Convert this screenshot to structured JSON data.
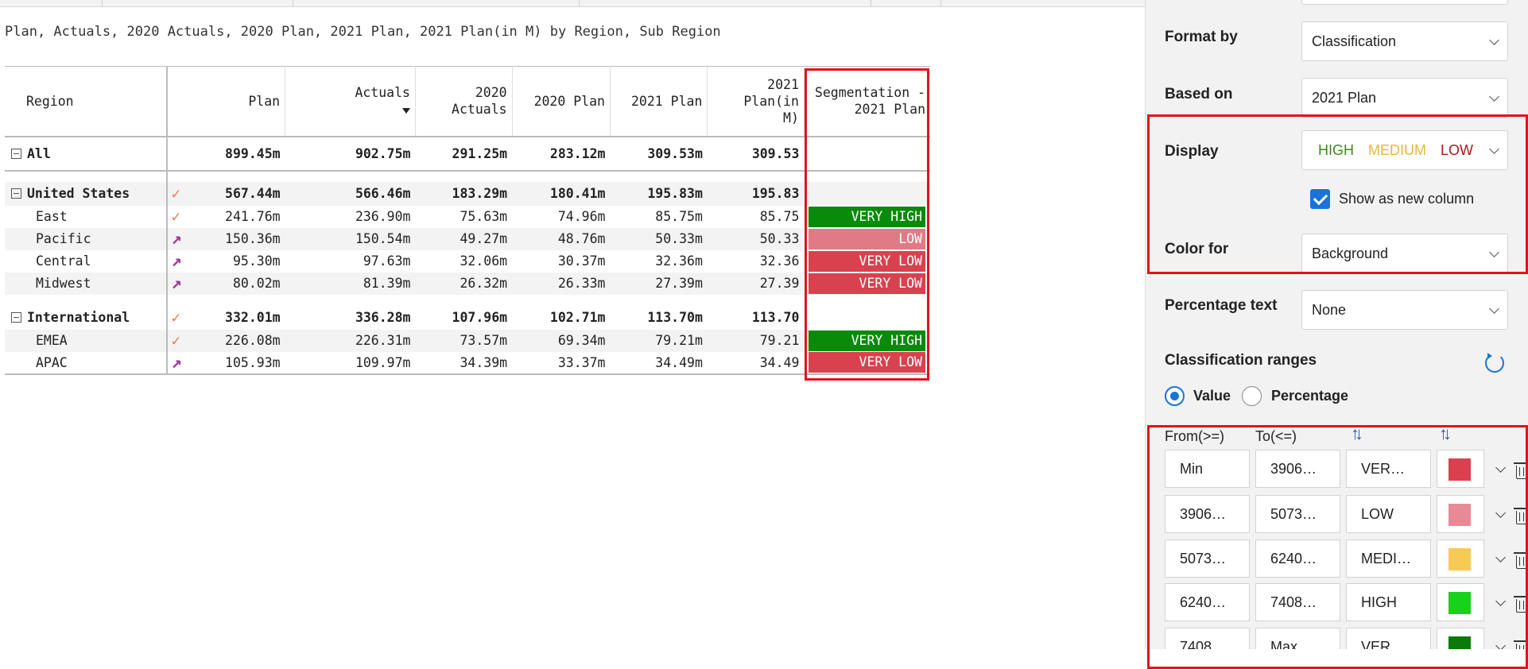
{
  "report": {
    "caption": "Plan, Actuals, 2020 Actuals, 2020 Plan, 2021 Plan, 2021 Plan(in M) by Region, Sub Region",
    "columns": {
      "region": "Region",
      "plan": "Plan",
      "actuals": "Actuals",
      "actuals_2020": "2020 Actuals",
      "plan_2020": "2020 Plan",
      "plan_2021": "2021 Plan",
      "plan_2021_m": "2021 Plan(in M)",
      "segmentation": "Segmentation - 2021 Plan"
    },
    "rows": [
      {
        "name": "All",
        "plan": "899.45m",
        "actuals": "902.75m",
        "a2020": "291.25m",
        "p2020": "283.12m",
        "p2021": "309.53m",
        "p2021m": "309.53",
        "seg": ""
      },
      {
        "name": "United States",
        "plan": "567.44m",
        "actuals": "566.46m",
        "a2020": "183.29m",
        "p2020": "180.41m",
        "p2021": "195.83m",
        "p2021m": "195.83",
        "seg": ""
      },
      {
        "name": "East",
        "plan": "241.76m",
        "actuals": "236.90m",
        "a2020": "75.63m",
        "p2020": "74.96m",
        "p2021": "85.75m",
        "p2021m": "85.75",
        "seg": "VERY HIGH"
      },
      {
        "name": "Pacific",
        "plan": "150.36m",
        "actuals": "150.54m",
        "a2020": "49.27m",
        "p2020": "48.76m",
        "p2021": "50.33m",
        "p2021m": "50.33",
        "seg": "LOW"
      },
      {
        "name": "Central",
        "plan": "95.30m",
        "actuals": "97.63m",
        "a2020": "32.06m",
        "p2020": "30.37m",
        "p2021": "32.36m",
        "p2021m": "32.36",
        "seg": "VERY LOW"
      },
      {
        "name": "Midwest",
        "plan": "80.02m",
        "actuals": "81.39m",
        "a2020": "26.32m",
        "p2020": "26.33m",
        "p2021": "27.39m",
        "p2021m": "27.39",
        "seg": "VERY LOW"
      },
      {
        "name": "International",
        "plan": "332.01m",
        "actuals": "336.28m",
        "a2020": "107.96m",
        "p2020": "102.71m",
        "p2021": "113.70m",
        "p2021m": "113.70",
        "seg": ""
      },
      {
        "name": "EMEA",
        "plan": "226.08m",
        "actuals": "226.31m",
        "a2020": "73.57m",
        "p2020": "69.34m",
        "p2021": "79.21m",
        "p2021m": "79.21",
        "seg": "VERY HIGH"
      },
      {
        "name": "APAC",
        "plan": "105.93m",
        "actuals": "109.97m",
        "a2020": "34.39m",
        "p2020": "33.37m",
        "p2021": "34.49m",
        "p2021m": "34.49",
        "seg": "VERY LOW"
      }
    ],
    "icons": {
      "up_check": "check-icon",
      "up_arrow": "arrow-up-right-icon"
    },
    "segment_colors": {
      "VERY HIGH": "#0a8a0a",
      "LOW": "#e07b86",
      "VERY LOW": "#d9414e"
    }
  },
  "panel": {
    "format_by": {
      "label": "Format by",
      "value": "Classification"
    },
    "based_on": {
      "label": "Based on",
      "value": "2021 Plan"
    },
    "display": {
      "label": "Display",
      "values": [
        {
          "text": "HIGH",
          "color": "#3a8a1a"
        },
        {
          "text": "MEDIUM",
          "color": "#e8b53a"
        },
        {
          "text": "LOW",
          "color": "#b0141c"
        }
      ],
      "show_as_new_column": "Show as new column"
    },
    "color_for": {
      "label": "Color for",
      "value": "Background"
    },
    "percentage_text": {
      "label": "Percentage text",
      "value": "None"
    },
    "classification_ranges": {
      "label": "Classification ranges",
      "mode_value": "Value",
      "mode_percentage": "Percentage",
      "headers": {
        "from": "From(>=)",
        "to": "To(<=)"
      },
      "ranges": [
        {
          "from": "Min",
          "to": "3906…",
          "name": "VER…",
          "color": "#d9414e"
        },
        {
          "from": "3906…",
          "to": "5073…",
          "name": "LOW",
          "color": "#e88a95"
        },
        {
          "from": "5073…",
          "to": "6240…",
          "name": "MEDI…",
          "color": "#f7c955"
        },
        {
          "from": "6240…",
          "to": "7408…",
          "name": "HIGH",
          "color": "#17d11a"
        },
        {
          "from": "7408…",
          "to": "Max",
          "name": "VER…",
          "color": "#0a7a0a"
        }
      ]
    }
  }
}
